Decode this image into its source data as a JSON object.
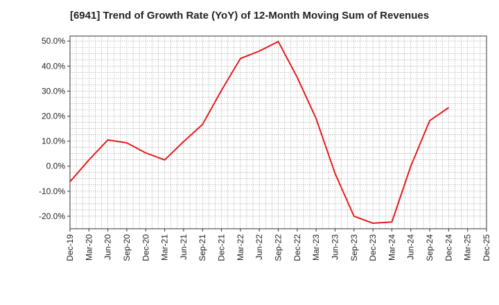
{
  "chart_data": {
    "type": "line",
    "title": "[6941]  Trend of Growth Rate (YoY) of 12-Month Moving Sum of Revenues",
    "xlabel": "",
    "ylabel": "",
    "ylim": [
      -25,
      52
    ],
    "yticks": [
      50,
      40,
      30,
      20,
      10,
      0,
      -10,
      -20
    ],
    "ytick_labels": [
      "50.0%",
      "40.0%",
      "30.0%",
      "20.0%",
      "10.0%",
      "0.0%",
      "-10.0%",
      "-20.0%"
    ],
    "xtick_labels": [
      "Dec-19",
      "Mar-20",
      "Jun-20",
      "Sep-20",
      "Dec-20",
      "Mar-21",
      "Jun-21",
      "Sep-21",
      "Dec-21",
      "Mar-22",
      "Jun-22",
      "Sep-22",
      "Dec-22",
      "Mar-23",
      "Jun-23",
      "Sep-23",
      "Dec-23",
      "Mar-24",
      "Jun-24",
      "Sep-24",
      "Dec-24",
      "Mar-25"
    ],
    "x_extra_tick": "Dec-25",
    "grid": true,
    "line_color": "#e8191c",
    "series": [
      {
        "x": [
          "Dec-19",
          "Mar-20",
          "Jun-20",
          "Sep-20",
          "Dec-20",
          "Mar-21",
          "Jun-21",
          "Sep-21",
          "Dec-21",
          "Mar-22",
          "Jun-22",
          "Sep-22",
          "Dec-22",
          "Mar-23",
          "Jun-23",
          "Sep-23",
          "Dec-23",
          "Mar-24",
          "Jun-24",
          "Sep-24",
          "Dec-24"
        ],
        "values": [
          -6.2,
          2.5,
          10.5,
          9.3,
          5.3,
          2.5,
          9.8,
          16.7,
          30.3,
          43.0,
          46.0,
          49.8,
          35.5,
          19.0,
          -2.9,
          -20.0,
          -22.8,
          -22.3,
          0.0,
          18.2,
          23.4
        ]
      }
    ]
  }
}
